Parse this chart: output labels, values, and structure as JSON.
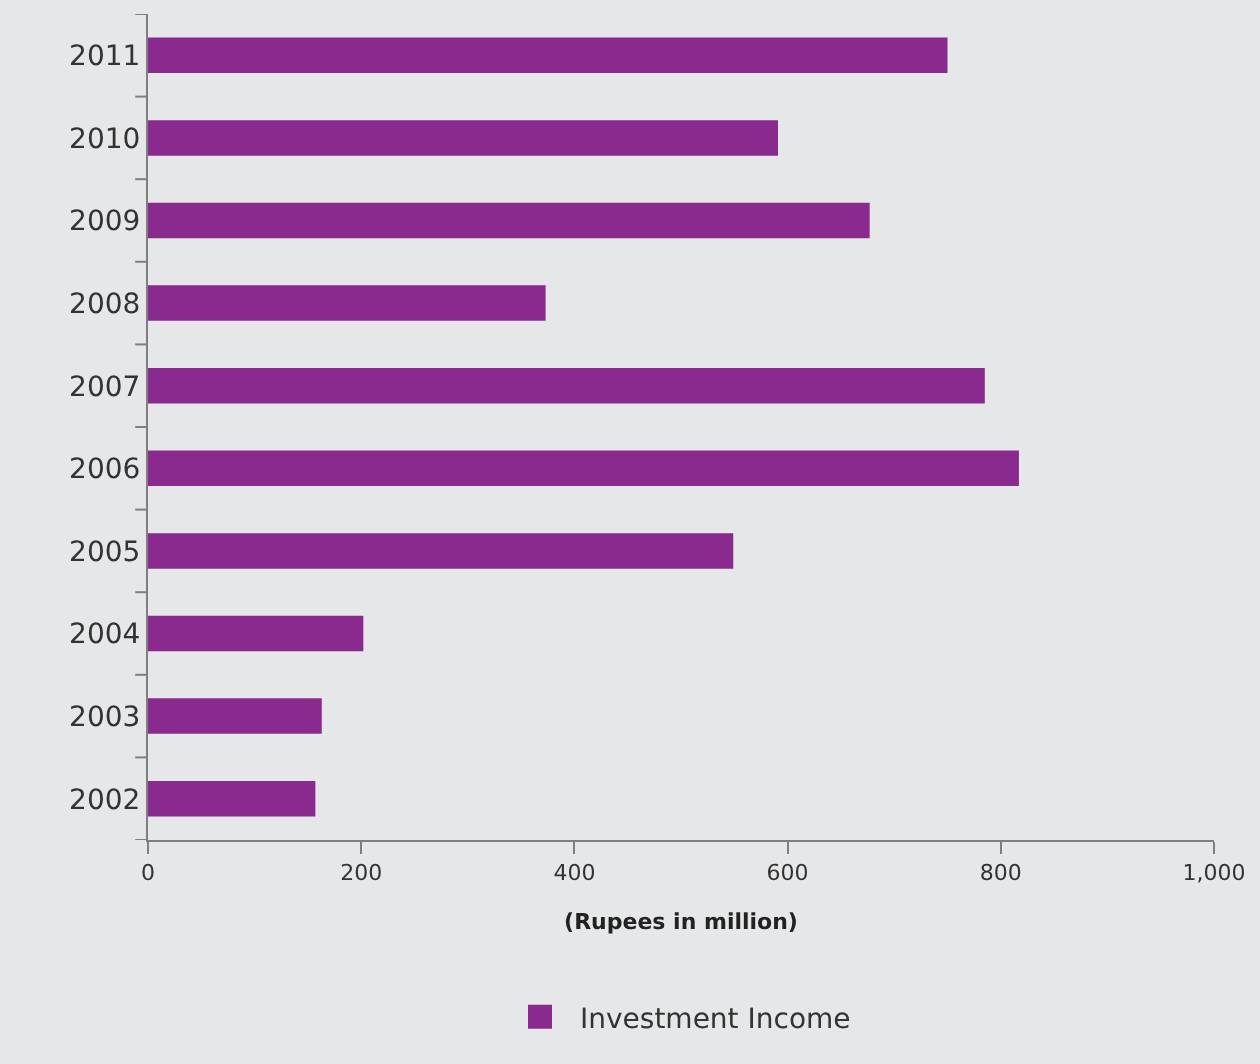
{
  "chart_data": {
    "type": "bar",
    "orientation": "horizontal",
    "categories": [
      "2011",
      "2010",
      "2009",
      "2008",
      "2007",
      "2006",
      "2005",
      "2004",
      "2003",
      "2002"
    ],
    "series": [
      {
        "name": "Investment Income",
        "color": "#8b2a8e",
        "values": [
          750,
          591,
          677,
          373,
          785,
          817,
          549,
          202,
          163,
          157
        ]
      }
    ],
    "xlabel": "(Rupees in million)",
    "xlim": [
      0,
      1000
    ],
    "xticks": [
      0,
      200,
      400,
      600,
      800,
      {
        "value": 1000,
        "label": "1,000"
      }
    ],
    "grid": false,
    "legend": "bottom"
  }
}
